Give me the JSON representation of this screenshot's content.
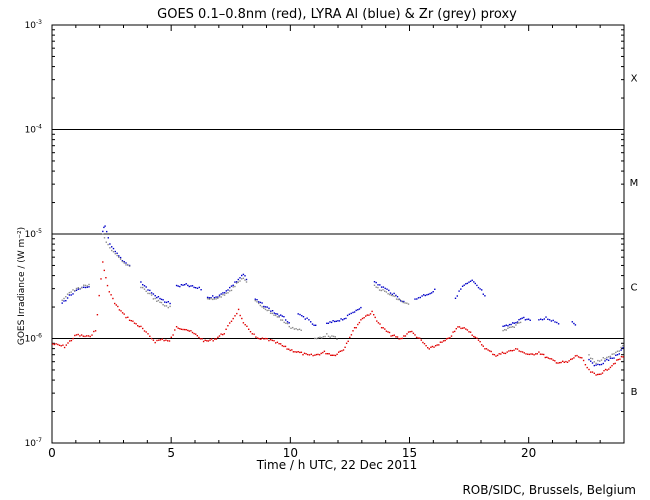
{
  "chart_data": {
    "type": "scatter",
    "title": "GOES 0.1–0.8nm (red), LYRA Al (blue) & Zr (grey) proxy",
    "xlabel": "Time / h UTC, 22 Dec 2011",
    "ylabel": "GOES Irradiance / (W m⁻²)",
    "xlim": [
      0,
      24
    ],
    "ylim": [
      1e-07,
      0.001
    ],
    "yscale": "log",
    "x_ticks": [
      0,
      5,
      10,
      15,
      20
    ],
    "y_ticks": [
      {
        "value": 1e-07,
        "base": "10",
        "exp": "-7"
      },
      {
        "value": 1e-06,
        "base": "10",
        "exp": "-6"
      },
      {
        "value": 1e-05,
        "base": "10",
        "exp": "-5"
      },
      {
        "value": 0.0001,
        "base": "10",
        "exp": "-4"
      },
      {
        "value": 0.001,
        "base": "10",
        "exp": "-3"
      }
    ],
    "flare_levels": [
      1e-06,
      1e-05,
      0.0001
    ],
    "flare_classes": [
      {
        "label": "X",
        "value": 0.000316
      },
      {
        "label": "M",
        "value": 3.16e-05
      },
      {
        "label": "C",
        "value": 3.16e-06
      },
      {
        "label": "B",
        "value": 3.16e-07
      }
    ],
    "colors": {
      "goes": "#e00000",
      "lyra_al": "#0000c8",
      "lyra_zr": "#8c8c8c",
      "axis": "#000000"
    },
    "series": [
      {
        "key": "goes",
        "x": [
          0,
          0.5,
          1,
          1.5,
          1.8,
          2.1,
          2.3,
          2.6,
          3,
          3.3,
          3.7,
          4,
          4.3,
          4.6,
          4.9,
          5.2,
          5.6,
          6,
          6.4,
          6.8,
          7.2,
          7.5,
          7.8,
          8,
          8.3,
          8.6,
          9,
          9.5,
          9.9,
          10.3,
          10.7,
          11,
          11.4,
          11.8,
          12.2,
          12.6,
          13,
          13.4,
          13.8,
          14.2,
          14.6,
          15,
          15.4,
          15.8,
          16.2,
          16.6,
          17,
          17.4,
          17.8,
          18.2,
          18.6,
          19,
          19.5,
          20,
          20.4,
          20.8,
          21.2,
          21.6,
          22,
          22.2,
          22.5,
          22.8,
          23.2,
          23.6,
          24
        ],
        "y": [
          9e-07,
          8.5e-07,
          1.1e-06,
          1.05e-06,
          1.2e-06,
          5.5e-06,
          3.2e-06,
          2.2e-06,
          1.7e-06,
          1.5e-06,
          1.3e-06,
          1.1e-06,
          9.5e-07,
          1e-06,
          9.5e-07,
          1.3e-06,
          1.25e-06,
          1.1e-06,
          9.5e-07,
          1e-06,
          1.15e-06,
          1.5e-06,
          1.9e-06,
          1.4e-06,
          1.2e-06,
          1e-06,
          1e-06,
          9e-07,
          8e-07,
          7.5e-07,
          7e-07,
          7e-07,
          7.5e-07,
          7e-07,
          8e-07,
          1.2e-06,
          1.6e-06,
          1.8e-06,
          1.3e-06,
          1.1e-06,
          1e-06,
          1.2e-06,
          1e-06,
          8e-07,
          9e-07,
          1e-06,
          1.3e-06,
          1.25e-06,
          1e-06,
          8e-07,
          7e-07,
          7.5e-07,
          8e-07,
          7e-07,
          7.5e-07,
          6.5e-07,
          6e-07,
          6e-07,
          7e-07,
          6.5e-07,
          5e-07,
          4.5e-07,
          5e-07,
          6e-07,
          7e-07
        ]
      },
      {
        "key": "lyra_al",
        "segments": [
          {
            "x": [
              0.4,
              0.7,
              1,
              1.3,
              1.6
            ],
            "y": [
              2.2e-06,
              2.6e-06,
              2.9e-06,
              3.1e-06,
              3.2e-06
            ]
          },
          {
            "x": [
              2.1,
              2.2,
              2.4,
              2.7,
              3,
              3.3
            ],
            "y": [
              1.1e-05,
              1.2e-05,
              8e-06,
              6.5e-06,
              5.5e-06,
              5e-06
            ]
          },
          {
            "x": [
              3.7,
              4,
              4.3,
              4.7,
              5
            ],
            "y": [
              3.5e-06,
              3e-06,
              2.6e-06,
              2.3e-06,
              2.2e-06
            ]
          },
          {
            "x": [
              5.2,
              5.6,
              6,
              6.3
            ],
            "y": [
              3.2e-06,
              3.3e-06,
              3.1e-06,
              3e-06
            ]
          },
          {
            "x": [
              6.5,
              7,
              7.5,
              8,
              8.2
            ],
            "y": [
              2.5e-06,
              2.6e-06,
              3.2e-06,
              4.2e-06,
              3.5e-06
            ]
          },
          {
            "x": [
              8.5,
              9,
              9.3,
              9.7,
              10
            ],
            "y": [
              2.4e-06,
              2e-06,
              1.8e-06,
              1.6e-06,
              1.4e-06
            ]
          },
          {
            "x": [
              10.3,
              10.6,
              10.9,
              11.1
            ],
            "y": [
              1.7e-06,
              1.6e-06,
              1.4e-06,
              1.3e-06
            ]
          },
          {
            "x": [
              11.5,
              11.9,
              12.3,
              12.6,
              13
            ],
            "y": [
              1.4e-06,
              1.5e-06,
              1.6e-06,
              1.8e-06,
              2.1e-06
            ]
          },
          {
            "x": [
              13.5,
              13.8,
              14.1,
              14.4,
              14.8
            ],
            "y": [
              3.5e-06,
              3.2e-06,
              2.9e-06,
              2.6e-06,
              2.2e-06
            ]
          },
          {
            "x": [
              15.2,
              15.5,
              15.9,
              16.1
            ],
            "y": [
              2.4e-06,
              2.6e-06,
              2.8e-06,
              3e-06
            ]
          },
          {
            "x": [
              16.9,
              17.2,
              17.6,
              18,
              18.2
            ],
            "y": [
              2.5e-06,
              3.2e-06,
              3.6e-06,
              2.9e-06,
              2.4e-06
            ]
          },
          {
            "x": [
              18.9,
              19.3,
              19.7,
              20.1
            ],
            "y": [
              1.3e-06,
              1.4e-06,
              1.6e-06,
              1.5e-06
            ]
          },
          {
            "x": [
              20.4,
              20.7,
              21,
              21.3
            ],
            "y": [
              1.5e-06,
              1.6e-06,
              1.5e-06,
              1.4e-06
            ]
          },
          {
            "x": [
              21.8,
              22
            ],
            "y": [
              1.5e-06,
              1.3e-06
            ]
          },
          {
            "x": [
              22.5,
              22.8,
              23.1,
              23.4,
              23.7,
              24
            ],
            "y": [
              6.5e-07,
              5.5e-07,
              6e-07,
              6.5e-07,
              7e-07,
              8.5e-07
            ]
          }
        ]
      },
      {
        "key": "lyra_zr",
        "segments": [
          {
            "x": [
              0.4,
              0.7,
              1,
              1.3,
              1.6
            ],
            "y": [
              2.4e-06,
              2.8e-06,
              3e-06,
              3.2e-06,
              3.3e-06
            ]
          },
          {
            "x": [
              2.1,
              2.4,
              2.7,
              3,
              3.3
            ],
            "y": [
              1e-05,
              7.5e-06,
              6.2e-06,
              5.3e-06,
              4.8e-06
            ]
          },
          {
            "x": [
              3.7,
              4,
              4.3,
              4.7,
              5
            ],
            "y": [
              3.2e-06,
              2.8e-06,
              2.4e-06,
              2.1e-06,
              2e-06
            ]
          },
          {
            "x": [
              6.5,
              7,
              7.5,
              8,
              8.2
            ],
            "y": [
              2.4e-06,
              2.5e-06,
              3e-06,
              3.9e-06,
              3.3e-06
            ]
          },
          {
            "x": [
              8.5,
              9,
              9.5,
              10,
              10.5
            ],
            "y": [
              2.3e-06,
              1.9e-06,
              1.6e-06,
              1.3e-06,
              1.2e-06
            ]
          },
          {
            "x": [
              11,
              11.5,
              12
            ],
            "y": [
              1e-06,
              1.1e-06,
              1e-06
            ]
          },
          {
            "x": [
              13.5,
              14,
              14.5,
              15
            ],
            "y": [
              3.2e-06,
              2.8e-06,
              2.4e-06,
              2.1e-06
            ]
          },
          {
            "x": [
              18.9,
              19.3,
              19.7
            ],
            "y": [
              1.2e-06,
              1.3e-06,
              1.5e-06
            ]
          },
          {
            "x": [
              22.5,
              22.8,
              23.1,
              23.4,
              23.7,
              24
            ],
            "y": [
              7e-07,
              6e-07,
              6.5e-07,
              7e-07,
              7.5e-07,
              9e-07
            ]
          }
        ]
      }
    ]
  },
  "footer": "ROB/SIDC, Brussels, Belgium"
}
